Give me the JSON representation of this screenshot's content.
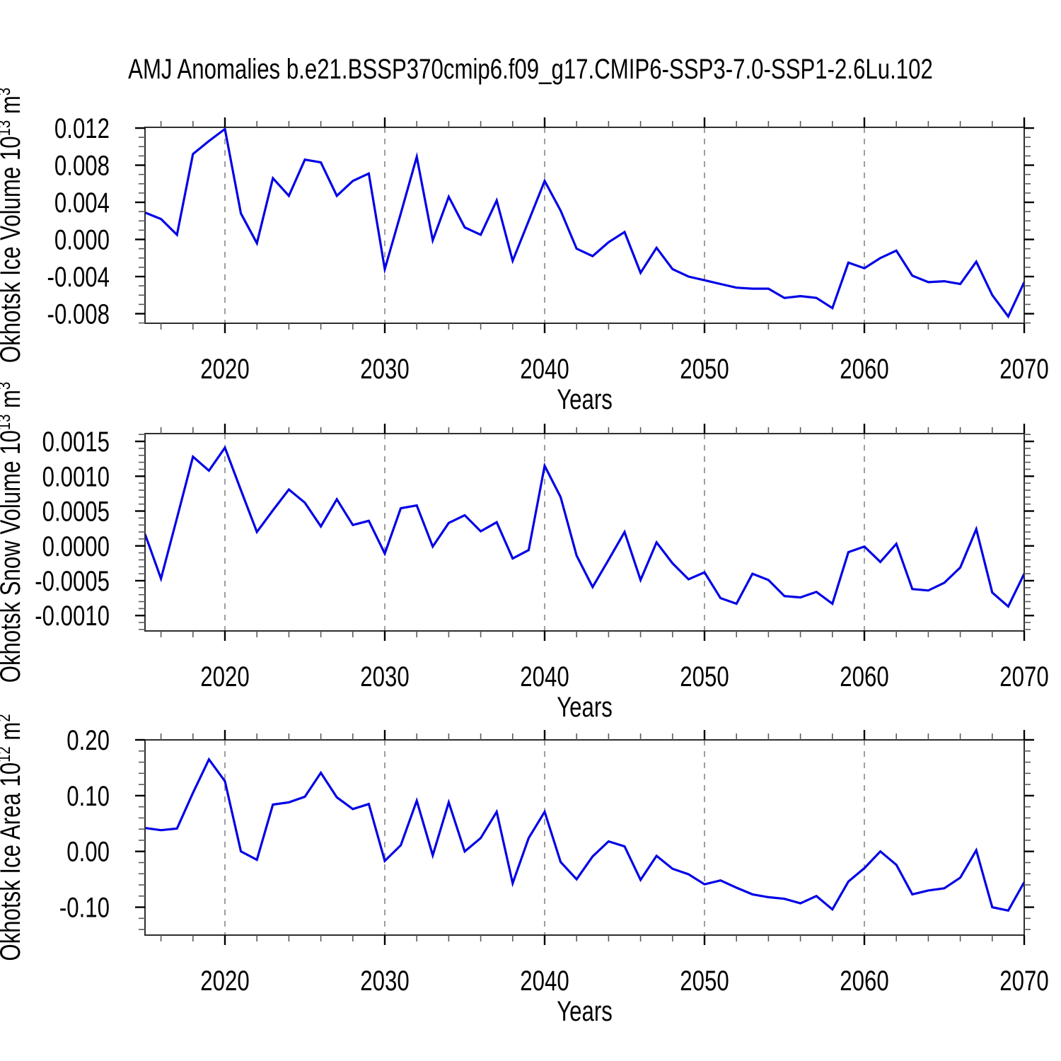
{
  "title": "AMJ Anomalies b.e21.BSSP370cmip6.f09_g17.CMIP6-SSP3-7.0-SSP1-2.6Lu.102",
  "line_color": "#0000e6",
  "chart_data": [
    {
      "type": "line",
      "id": "okhotsk-ice-volume",
      "ylabel": "Okhotsk Ice Volume 10^{13} m^{3}",
      "xlabel": "Years",
      "xlim": [
        2015,
        2070
      ],
      "ylim": [
        -0.00903,
        0.01208
      ],
      "grid": "vertical-dashed",
      "grid_years": [
        2020,
        2030,
        2040,
        2050,
        2060
      ],
      "xticks": [
        {
          "v": 2020,
          "label": "2020"
        },
        {
          "v": 2030,
          "label": "2030"
        },
        {
          "v": 2040,
          "label": "2040"
        },
        {
          "v": 2050,
          "label": "2050"
        },
        {
          "v": 2060,
          "label": "2060"
        },
        {
          "v": 2070,
          "label": "2070"
        }
      ],
      "x_minor_step": 2,
      "yticks": [
        {
          "v": 0.012,
          "label": "0.012"
        },
        {
          "v": 0.008,
          "label": "0.008"
        },
        {
          "v": 0.004,
          "label": "0.004"
        },
        {
          "v": 0.0,
          "label": "0.000"
        },
        {
          "v": -0.004,
          "label": "-0.004"
        },
        {
          "v": -0.008,
          "label": "-0.008"
        }
      ],
      "y_minor_step": 0.001,
      "x": [
        2015,
        2016,
        2017,
        2018,
        2019,
        2020,
        2021,
        2022,
        2023,
        2024,
        2025,
        2026,
        2027,
        2028,
        2029,
        2030,
        2031,
        2032,
        2033,
        2034,
        2035,
        2036,
        2037,
        2038,
        2039,
        2040,
        2041,
        2042,
        2043,
        2044,
        2045,
        2046,
        2047,
        2048,
        2049,
        2050,
        2051,
        2052,
        2053,
        2054,
        2055,
        2056,
        2057,
        2058,
        2059,
        2060,
        2061,
        2062,
        2063,
        2064,
        2065,
        2066,
        2067,
        2068,
        2069,
        2070
      ],
      "values": [
        0.0029,
        0.0022,
        0.0005,
        0.0092,
        0.0106,
        0.0119,
        0.0028,
        -0.0004,
        0.0066,
        0.0047,
        0.0086,
        0.0083,
        0.0047,
        0.0063,
        0.0071,
        -0.0032,
        0.0028,
        0.0089,
        -0.0001,
        0.0046,
        0.0013,
        0.0005,
        0.0042,
        -0.0023,
        0.002,
        0.0063,
        0.0031,
        -0.001,
        -0.0018,
        -0.0003,
        0.0008,
        -0.0036,
        -0.0009,
        -0.0032,
        -0.004,
        -0.0044,
        -0.0048,
        -0.0052,
        -0.0053,
        -0.0053,
        -0.0063,
        -0.0061,
        -0.0063,
        -0.0074,
        -0.0025,
        -0.0031,
        -0.002,
        -0.0012,
        -0.0039,
        -0.0046,
        -0.0045,
        -0.0048,
        -0.0024,
        -0.006,
        -0.0083,
        -0.0046
      ]
    },
    {
      "type": "line",
      "id": "okhotsk-snow-volume",
      "ylabel": "Okhotsk Snow Volume 10^{13} m^{3}",
      "xlabel": "Years",
      "xlim": [
        2015,
        2070
      ],
      "ylim": [
        -0.001221,
        0.001612
      ],
      "grid": "vertical-dashed",
      "grid_years": [
        2020,
        2030,
        2040,
        2050,
        2060
      ],
      "xticks": [
        {
          "v": 2020,
          "label": "2020"
        },
        {
          "v": 2030,
          "label": "2030"
        },
        {
          "v": 2040,
          "label": "2040"
        },
        {
          "v": 2050,
          "label": "2050"
        },
        {
          "v": 2060,
          "label": "2060"
        },
        {
          "v": 2070,
          "label": "2070"
        }
      ],
      "x_minor_step": 2,
      "yticks": [
        {
          "v": 0.0015,
          "label": "0.0015"
        },
        {
          "v": 0.001,
          "label": "0.0010"
        },
        {
          "v": 0.0005,
          "label": "0.0005"
        },
        {
          "v": 0.0,
          "label": "0.0000"
        },
        {
          "v": -0.0005,
          "label": "-0.0005"
        },
        {
          "v": -0.001,
          "label": "-0.0010"
        }
      ],
      "y_minor_step": 0.0001,
      "x": [
        2015,
        2016,
        2017,
        2018,
        2019,
        2020,
        2021,
        2022,
        2023,
        2024,
        2025,
        2026,
        2027,
        2028,
        2029,
        2030,
        2031,
        2032,
        2033,
        2034,
        2035,
        2036,
        2037,
        2038,
        2039,
        2040,
        2041,
        2042,
        2043,
        2044,
        2045,
        2046,
        2047,
        2048,
        2049,
        2050,
        2051,
        2052,
        2053,
        2054,
        2055,
        2056,
        2057,
        2058,
        2059,
        2060,
        2061,
        2062,
        2063,
        2064,
        2065,
        2066,
        2067,
        2068,
        2069,
        2070
      ],
      "values": [
        0.00017,
        -0.00047,
        0.0004,
        0.00128,
        0.00108,
        0.00141,
        0.0008,
        0.0002,
        0.00051,
        0.00081,
        0.00062,
        0.00028,
        0.00067,
        0.0003,
        0.00036,
        -0.00011,
        0.00054,
        0.00058,
        -1e-05,
        0.00033,
        0.00044,
        0.00021,
        0.00034,
        -0.00018,
        -6e-05,
        0.00115,
        0.0007,
        -0.00014,
        -0.00059,
        -0.0002,
        0.0002,
        -0.00049,
        5e-05,
        -0.00025,
        -0.00048,
        -0.00038,
        -0.00075,
        -0.00083,
        -0.0004,
        -0.00049,
        -0.00072,
        -0.00074,
        -0.00066,
        -0.00083,
        -9e-05,
        -1e-05,
        -0.00023,
        3e-05,
        -0.00062,
        -0.00064,
        -0.00053,
        -0.00031,
        0.00024,
        -0.00067,
        -0.00087,
        -0.0004
      ]
    },
    {
      "type": "line",
      "id": "okhotsk-ice-area",
      "ylabel": "Okhotsk Ice Area 10^{12} m^{2}",
      "xlabel": "Years",
      "xlim": [
        2015,
        2070
      ],
      "ylim": [
        -0.15,
        0.2
      ],
      "grid": "vertical-dashed",
      "grid_years": [
        2020,
        2030,
        2040,
        2050,
        2060
      ],
      "xticks": [
        {
          "v": 2020,
          "label": "2020"
        },
        {
          "v": 2030,
          "label": "2030"
        },
        {
          "v": 2040,
          "label": "2040"
        },
        {
          "v": 2050,
          "label": "2050"
        },
        {
          "v": 2060,
          "label": "2060"
        },
        {
          "v": 2070,
          "label": "2070"
        }
      ],
      "x_minor_step": 2,
      "yticks": [
        {
          "v": 0.2,
          "label": "0.20"
        },
        {
          "v": 0.1,
          "label": "0.10"
        },
        {
          "v": 0.0,
          "label": "0.00"
        },
        {
          "v": -0.1,
          "label": "-0.10"
        }
      ],
      "y_minor_step": 0.02,
      "x": [
        2015,
        2016,
        2017,
        2018,
        2019,
        2020,
        2021,
        2022,
        2023,
        2024,
        2025,
        2026,
        2027,
        2028,
        2029,
        2030,
        2031,
        2032,
        2033,
        2034,
        2035,
        2036,
        2037,
        2038,
        2039,
        2040,
        2041,
        2042,
        2043,
        2044,
        2045,
        2046,
        2047,
        2048,
        2049,
        2050,
        2051,
        2052,
        2053,
        2054,
        2055,
        2056,
        2057,
        2058,
        2059,
        2060,
        2061,
        2062,
        2063,
        2064,
        2065,
        2066,
        2067,
        2068,
        2069,
        2070
      ],
      "values": [
        0.042,
        0.038,
        0.041,
        0.105,
        0.165,
        0.126,
        0.0,
        -0.015,
        0.084,
        0.088,
        0.098,
        0.141,
        0.097,
        0.076,
        0.085,
        -0.017,
        0.011,
        0.091,
        -0.007,
        0.088,
        0.0,
        0.024,
        0.071,
        -0.057,
        0.024,
        0.071,
        -0.019,
        -0.05,
        -0.009,
        0.018,
        0.009,
        -0.051,
        -0.008,
        -0.031,
        -0.041,
        -0.059,
        -0.052,
        -0.065,
        -0.077,
        -0.082,
        -0.085,
        -0.093,
        -0.08,
        -0.104,
        -0.054,
        -0.03,
        0.0,
        -0.024,
        -0.077,
        -0.07,
        -0.066,
        -0.047,
        0.002,
        -0.1,
        -0.106,
        -0.055
      ]
    }
  ]
}
